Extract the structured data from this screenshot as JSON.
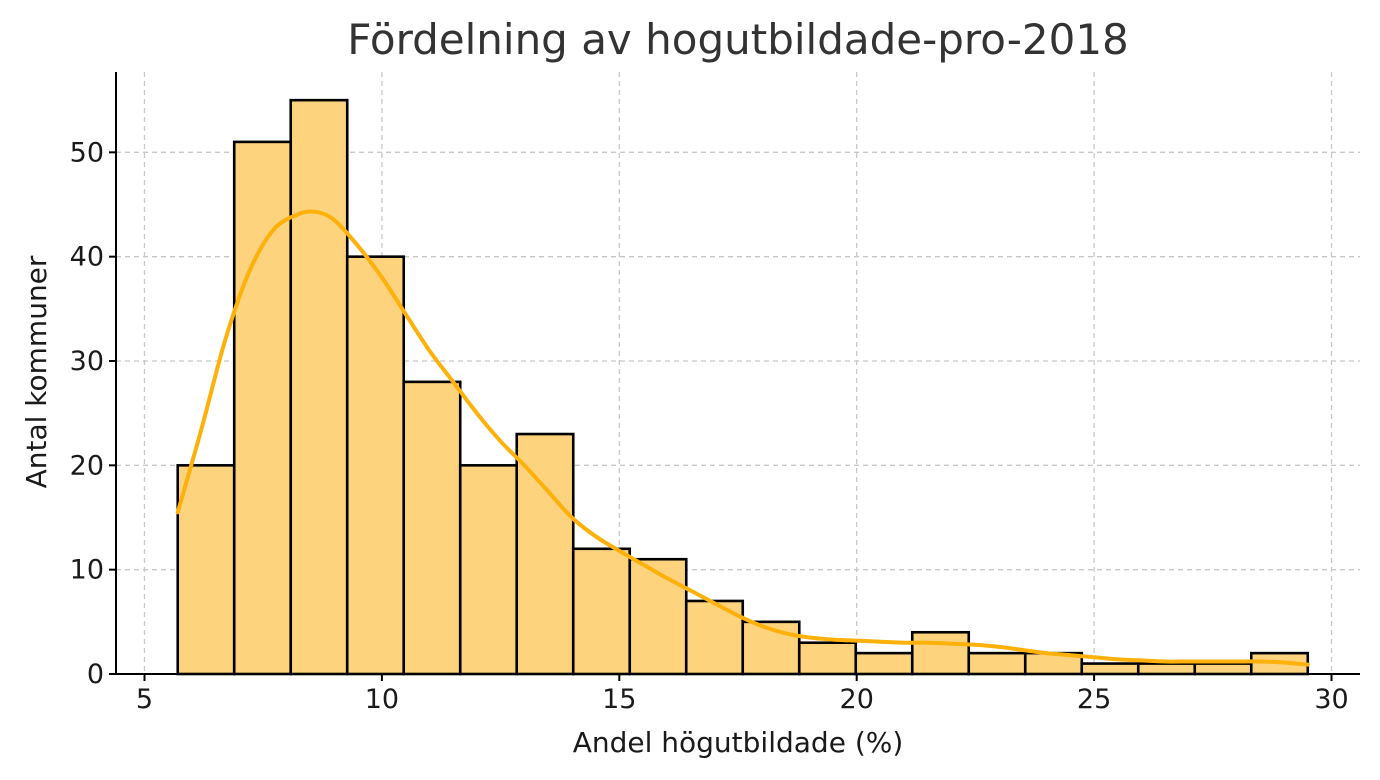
{
  "chart_data": {
    "type": "bar",
    "subtype": "histogram",
    "title": "Fördelning av hogutbildade-pro-2018",
    "xlabel": "Andel högutbildade (%)",
    "ylabel": "Antal kommuner",
    "xlim": [
      4.4,
      30.6
    ],
    "ylim": [
      0,
      57.7
    ],
    "xticks": [
      5,
      10,
      15,
      20,
      25,
      30
    ],
    "yticks": [
      0,
      10,
      20,
      30,
      40,
      50
    ],
    "grid": true,
    "bin_edges": [
      5.7,
      6.89,
      8.08,
      9.27,
      10.46,
      11.65,
      12.84,
      14.03,
      15.22,
      16.41,
      17.6,
      18.79,
      19.98,
      21.17,
      22.36,
      23.55,
      24.74,
      25.93,
      27.12,
      28.31,
      29.5
    ],
    "counts": [
      20,
      51,
      55,
      40,
      28,
      20,
      23,
      12,
      11,
      7,
      5,
      3,
      2,
      4,
      2,
      2,
      1,
      1,
      1,
      2
    ],
    "kde": {
      "x": [
        5.7,
        6.2,
        6.7,
        7.2,
        7.7,
        8.2,
        8.6,
        9.0,
        9.5,
        10.0,
        10.5,
        11.0,
        11.5,
        12.0,
        12.5,
        13.0,
        13.5,
        14.0,
        14.5,
        15.0,
        15.5,
        16.0,
        16.5,
        17.0,
        17.5,
        18.0,
        18.5,
        19.0,
        19.5,
        20.0,
        20.5,
        21.0,
        21.5,
        22.0,
        22.5,
        23.0,
        23.5,
        24.0,
        24.5,
        25.0,
        25.5,
        26.0,
        26.5,
        27.0,
        27.5,
        28.0,
        28.5,
        29.0,
        29.5
      ],
      "y": [
        15.5,
        23.5,
        32.0,
        38.5,
        42.5,
        44.0,
        44.3,
        43.5,
        41.0,
        38.0,
        34.5,
        31.0,
        28.0,
        25.0,
        22.3,
        20.0,
        17.5,
        15.0,
        13.2,
        11.8,
        10.5,
        9.2,
        8.0,
        6.8,
        5.6,
        4.6,
        3.9,
        3.5,
        3.3,
        3.2,
        3.1,
        3.0,
        3.0,
        2.9,
        2.8,
        2.6,
        2.3,
        2.0,
        1.8,
        1.6,
        1.4,
        1.3,
        1.2,
        1.2,
        1.2,
        1.2,
        1.2,
        1.1,
        0.9
      ]
    },
    "colors": {
      "bar_fill": "#fdd37e",
      "bar_edge": "#000000",
      "kde_line": "#fdb10a"
    }
  }
}
